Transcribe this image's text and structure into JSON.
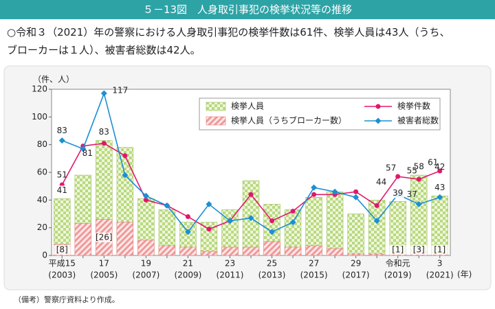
{
  "header": {
    "title": "５－13図　人身取引事犯の検挙状況等の推移",
    "summary": [
      "○令和３（2021）年の警察における人身取引事犯の検挙件数は61件、検挙人員は43人（うち、",
      "ブローカーは１人）、被害者総数は42人。"
    ]
  },
  "note": "（備考）警察庁資料より作成。",
  "chart_data": {
    "type": "combo",
    "y_label": "（件、人）",
    "x_label": "(年)",
    "categories": [
      "平成15",
      null,
      "17",
      null,
      "19",
      null,
      "21",
      null,
      "23",
      null,
      "25",
      null,
      "27",
      null,
      "29",
      null,
      "令和元",
      null,
      "3"
    ],
    "category_years": [
      "(2003)",
      null,
      "(2005)",
      null,
      "(2007)",
      null,
      "(2009)",
      null,
      "(2011)",
      null,
      "(2013)",
      null,
      "(2015)",
      null,
      "(2017)",
      null,
      "(2019)",
      null,
      "(2021)"
    ],
    "ylim": [
      0,
      120
    ],
    "yticks": [
      0,
      20,
      40,
      60,
      80,
      100,
      120
    ],
    "series": [
      {
        "name": "検挙人員",
        "type": "bar",
        "color": "#b9d97e",
        "values": [
          41,
          58,
          83,
          78,
          41,
          33,
          24,
          24,
          33,
          54,
          37,
          33,
          42,
          46,
          30,
          40,
          39,
          58,
          43
        ],
        "value_labels": [
          "41",
          null,
          "83",
          null,
          null,
          null,
          null,
          null,
          null,
          null,
          null,
          null,
          null,
          null,
          null,
          null,
          "39",
          "58",
          "43"
        ]
      },
      {
        "name": "検挙人員（うちブローカー数）",
        "type": "bar",
        "color": "#ef9a9a",
        "values": [
          8,
          23,
          26,
          24,
          11,
          7,
          6,
          3,
          6,
          6,
          10,
          6,
          7,
          5,
          1,
          1,
          1,
          3,
          1
        ],
        "value_labels": [
          "[8]",
          null,
          "[26]",
          null,
          null,
          null,
          null,
          null,
          null,
          null,
          null,
          null,
          null,
          null,
          null,
          null,
          "[1]",
          "[3]",
          "[1]"
        ]
      },
      {
        "name": "検挙件数",
        "type": "line",
        "marker": "circle",
        "color": "#e0186c",
        "values": [
          51,
          79,
          81,
          72,
          40,
          36,
          28,
          19,
          25,
          44,
          25,
          32,
          44,
          44,
          46,
          36,
          57,
          55,
          61
        ],
        "value_labels": [
          "51",
          null,
          "81",
          null,
          null,
          null,
          null,
          null,
          null,
          null,
          null,
          null,
          null,
          null,
          null,
          null,
          "57",
          "55",
          "61"
        ]
      },
      {
        "name": "被害者総数",
        "type": "line",
        "marker": "diamond",
        "color": "#1b8fd2",
        "values": [
          83,
          77,
          117,
          58,
          43,
          36,
          17,
          37,
          25,
          27,
          17,
          24,
          49,
          46,
          42,
          25,
          44,
          37,
          42
        ],
        "value_labels": [
          "83",
          null,
          "117",
          null,
          null,
          null,
          null,
          null,
          null,
          null,
          null,
          null,
          null,
          null,
          null,
          null,
          "44",
          "37",
          "42"
        ]
      }
    ]
  }
}
